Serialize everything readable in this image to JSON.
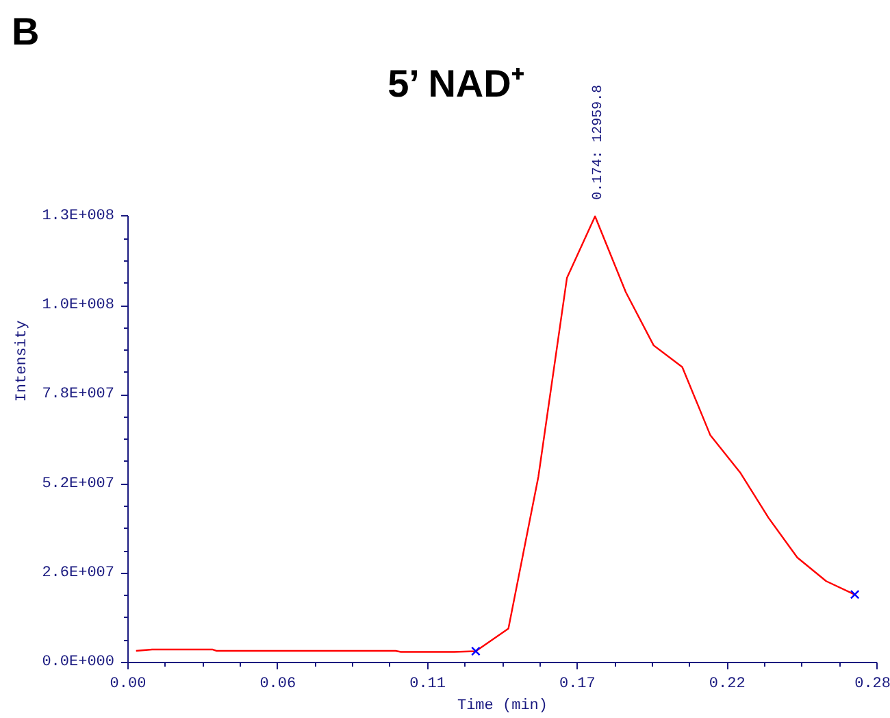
{
  "chart_data": {
    "type": "line",
    "title": "5’ NAD⁺",
    "xlabel": "Time (min)",
    "ylabel": "Intensity",
    "annotations": [
      "B",
      {
        "text": "0.174: 12959.8",
        "x": 0.174,
        "y": 130000000
      }
    ],
    "xlim": [
      0,
      0.28
    ],
    "xticks": [
      {
        "value": 0,
        "label": "0.00"
      },
      {
        "value": 0.056,
        "label": "0.06"
      },
      {
        "value": 0.112,
        "label": "0.11"
      },
      {
        "value": 0.168,
        "label": "0.17"
      },
      {
        "value": 0.224,
        "label": "0.22"
      },
      {
        "value": 0.28,
        "label": "0.28"
      }
    ],
    "ylim": [
      0,
      130000000
    ],
    "yticks": [
      {
        "value": 0,
        "label": "0.0E+000"
      },
      {
        "value": 26000000,
        "label": "2.6E+007"
      },
      {
        "value": 52000000,
        "label": "5.2E+007"
      },
      {
        "value": 78000000,
        "label": "7.8E+007"
      },
      {
        "value": 104000000,
        "label": "1.0E+008"
      },
      {
        "value": 130000000,
        "label": "1.3E+008"
      }
    ],
    "grid": false,
    "series": [
      {
        "color": "#ff0000",
        "marker": "none",
        "line_style": "solid",
        "x": [
          0.003,
          0.009,
          0.0315,
          0.033,
          0.1,
          0.102,
          0.122,
          0.13,
          0.1422,
          0.1534,
          0.1641,
          0.1746,
          0.1861,
          0.1965,
          0.2072,
          0.2177,
          0.2288,
          0.2395,
          0.2502,
          0.261,
          0.2717
        ],
        "values": [
          3400000,
          3800000,
          3800000,
          3400000,
          3400000,
          3100000,
          3100000,
          3300000,
          9900000,
          54100000,
          112100000,
          130000000,
          107900000,
          92400000,
          86100000,
          66200000,
          55400000,
          42100000,
          30600000,
          23700000,
          19800000
        ]
      },
      {
        "type": "scatter",
        "color": "#0000ff",
        "marker": "cross",
        "x": [
          0.13,
          0.2717
        ],
        "values": [
          3300000,
          19800000
        ]
      }
    ]
  }
}
